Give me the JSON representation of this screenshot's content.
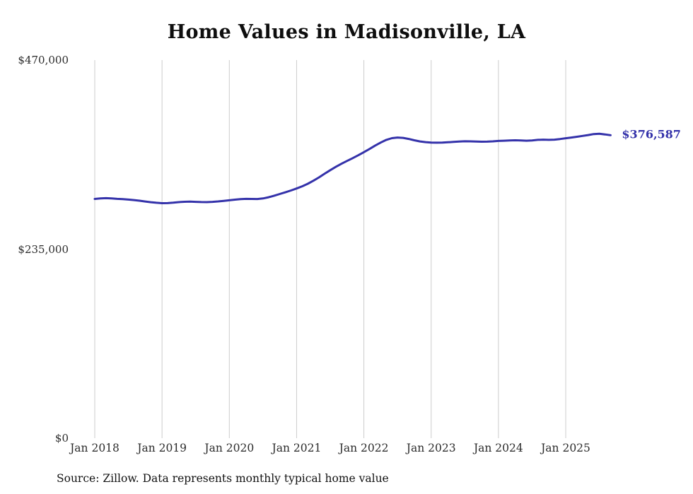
{
  "page": {
    "background": "#ffffff"
  },
  "title": "Home Values in Madisonville, LA",
  "source_note": "Source: Zillow. Data represents monthly typical home value",
  "colors": {
    "line": "#3432aa",
    "end_label": "#3432aa",
    "gridline": "#cccccc",
    "tick_text": "#2b2b2b"
  },
  "chart_data": {
    "type": "line",
    "title": "Home Values in Madisonville, LA",
    "xlabel": "",
    "ylabel": "",
    "ylim": [
      0,
      470000
    ],
    "grid": "vertical-only",
    "legend": "none",
    "x_ticks": [
      "Jan 2018",
      "Jan 2019",
      "Jan 2020",
      "Jan 2021",
      "Jan 2022",
      "Jan 2023",
      "Jan 2024",
      "Jan 2025"
    ],
    "y_ticks": [
      "$0",
      "$235,000",
      "$470,000"
    ],
    "y_tick_values": [
      0,
      235000,
      470000
    ],
    "end_label": "$376,587",
    "end_value": 376587,
    "series": [
      {
        "name": "Monthly typical home value",
        "x_start": "2018-01",
        "x_end": "2025-09",
        "values": [
          297400,
          298000,
          298300,
          298000,
          297500,
          297100,
          296600,
          296000,
          295200,
          294200,
          293300,
          292600,
          292100,
          292200,
          292700,
          293400,
          293900,
          294000,
          293800,
          293500,
          293400,
          293800,
          294300,
          295000,
          295700,
          296500,
          297200,
          297500,
          297400,
          297300,
          298000,
          299500,
          301400,
          303500,
          305600,
          307900,
          310400,
          313100,
          316300,
          320000,
          324200,
          328700,
          333100,
          337300,
          341100,
          344600,
          348100,
          351700,
          355500,
          359500,
          363600,
          367500,
          370800,
          372900,
          373700,
          373300,
          372000,
          370300,
          368900,
          368000,
          367500,
          367300,
          367400,
          367800,
          368300,
          368800,
          369100,
          369000,
          368700,
          368500,
          368600,
          369000,
          369500,
          369800,
          370100,
          370300,
          370100,
          369800,
          370100,
          370800,
          371100,
          370800,
          371100,
          371900,
          372800,
          373700,
          374700,
          375700,
          376800,
          378000,
          378400,
          377600,
          376587
        ]
      }
    ]
  }
}
